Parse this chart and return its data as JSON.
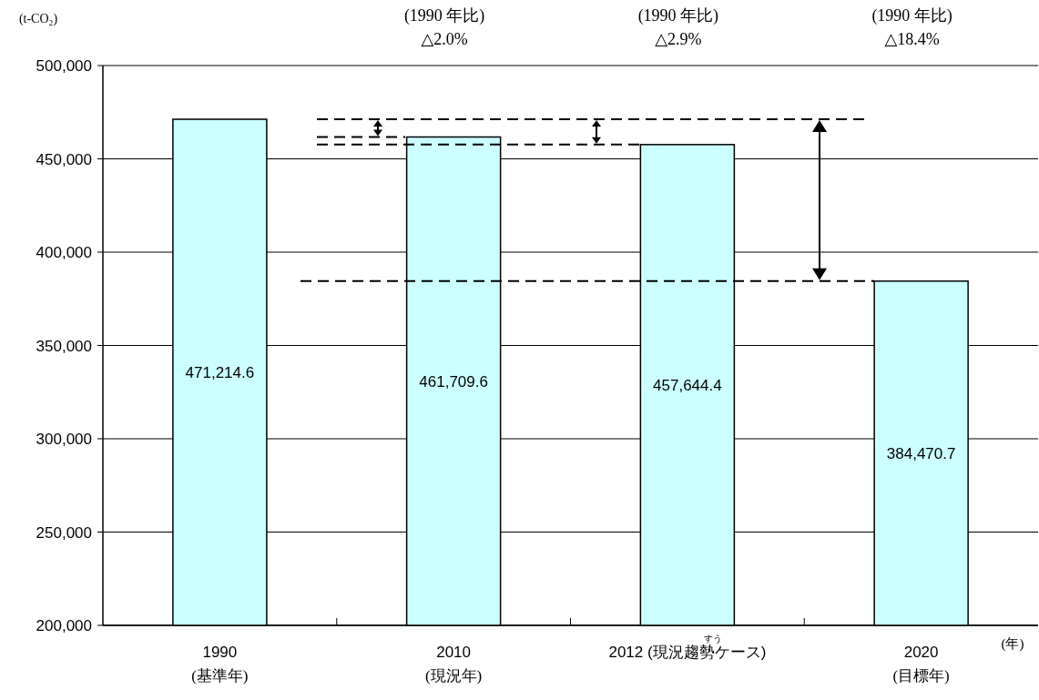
{
  "chart_data": {
    "type": "bar",
    "ylabel": "(t-CO₂)",
    "xlabel": "(年)",
    "categories": [
      "1990\n(基準年)",
      "2010\n(現況年)",
      "2012 (現況趨勢ケース)",
      "2020\n(目標年)"
    ],
    "values": [
      471214.6,
      461709.6,
      457644.4,
      384470.7
    ],
    "color": "#ccffff",
    "ylim": [
      200000,
      500000
    ],
    "yticks": [
      {
        "value": 200000,
        "label": "200,000"
      },
      {
        "value": 250000,
        "label": "250,000"
      },
      {
        "value": 300000,
        "label": "300,000"
      },
      {
        "value": 350000,
        "label": "350,000"
      },
      {
        "value": 400000,
        "label": "400,000"
      },
      {
        "value": 450000,
        "label": "450,000"
      },
      {
        "value": 500000,
        "label": "500,000"
      }
    ],
    "value_labels": [
      "471,214.6",
      "461,709.6",
      "457,644.4",
      "384,470.7"
    ],
    "grid": "y",
    "ref_lines": [
      {
        "axis": "y",
        "value": 471214.6,
        "line_style": "dashed",
        "color": "#000000"
      },
      {
        "axis": "y",
        "value": 461709.6,
        "line_style": "dashed",
        "color": "#000000"
      },
      {
        "axis": "y",
        "value": 457644.4,
        "line_style": "dashed",
        "color": "#000000"
      },
      {
        "axis": "y",
        "value": 384470.7,
        "line_style": "dashed",
        "color": "#000000"
      }
    ],
    "annotations": [
      "(1990 年比)\n△2.0%",
      "(1990 年比)\n△2.9%",
      "(1990 年比)\n△18.4%",
      "すう"
    ]
  }
}
